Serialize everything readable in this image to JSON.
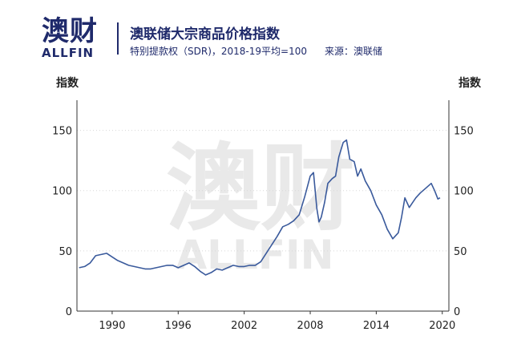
{
  "brand": {
    "logo_cn": "澳财",
    "logo_en": "ALLFIN",
    "watermark_cn": "澳财",
    "watermark_en": "ALLFIN"
  },
  "header": {
    "title": "澳联储大宗商品价格指数",
    "subtitle": "特别提款权（SDR)，2018-19平均=100",
    "source": "来源：澳联储"
  },
  "colors": {
    "line": "#3a5a9c",
    "brand": "#1f2a6b"
  },
  "chart_data": {
    "type": "line",
    "title": "澳联储大宗商品价格指数",
    "ylabel_left": "指数",
    "ylabel_right": "指数",
    "xlim": [
      1986.8,
      2020.6
    ],
    "ylim": [
      0,
      175
    ],
    "x_ticks": [
      1990,
      1996,
      2002,
      2008,
      2014,
      2020
    ],
    "y_ticks": [
      0,
      50,
      100,
      150
    ],
    "grid": "horizontal dotted",
    "series": [
      {
        "x": [
          1987.0,
          1987.5,
          1988.0,
          1988.5,
          1989.0,
          1989.5,
          1990.0,
          1990.5,
          1991.0,
          1991.5,
          1992.0,
          1992.5,
          1993.0,
          1993.5,
          1994.0,
          1994.5,
          1995.0,
          1995.5,
          1996.0,
          1996.5,
          1997.0,
          1997.5,
          1998.0,
          1998.5,
          1999.0,
          1999.5,
          2000.0,
          2000.5,
          2001.0,
          2001.5,
          2002.0,
          2002.5,
          2003.0,
          2003.5,
          2004.0,
          2004.5,
          2005.0,
          2005.5,
          2006.0,
          2006.5,
          2007.0,
          2007.5,
          2008.0,
          2008.3,
          2008.6,
          2008.8,
          2009.0,
          2009.3,
          2009.6,
          2010.0,
          2010.3,
          2010.6,
          2011.0,
          2011.3,
          2011.6,
          2012.0,
          2012.3,
          2012.6,
          2013.0,
          2013.5,
          2014.0,
          2014.5,
          2015.0,
          2015.5,
          2016.0,
          2016.3,
          2016.6,
          2017.0,
          2017.3,
          2017.6,
          2018.0,
          2018.5,
          2019.0,
          2019.3,
          2019.6,
          2019.8
        ],
        "values": [
          36,
          37,
          40,
          46,
          47,
          48,
          45,
          42,
          40,
          38,
          37,
          36,
          35,
          35,
          36,
          37,
          38,
          38,
          36,
          38,
          40,
          37,
          33,
          30,
          32,
          35,
          34,
          36,
          38,
          37,
          37,
          38,
          38,
          41,
          48,
          55,
          62,
          70,
          72,
          75,
          80,
          95,
          112,
          115,
          85,
          74,
          78,
          90,
          106,
          110,
          112,
          128,
          140,
          142,
          126,
          124,
          112,
          118,
          108,
          100,
          88,
          80,
          68,
          60,
          65,
          78,
          94,
          86,
          90,
          94,
          98,
          102,
          106,
          100,
          93,
          94
        ]
      }
    ]
  }
}
